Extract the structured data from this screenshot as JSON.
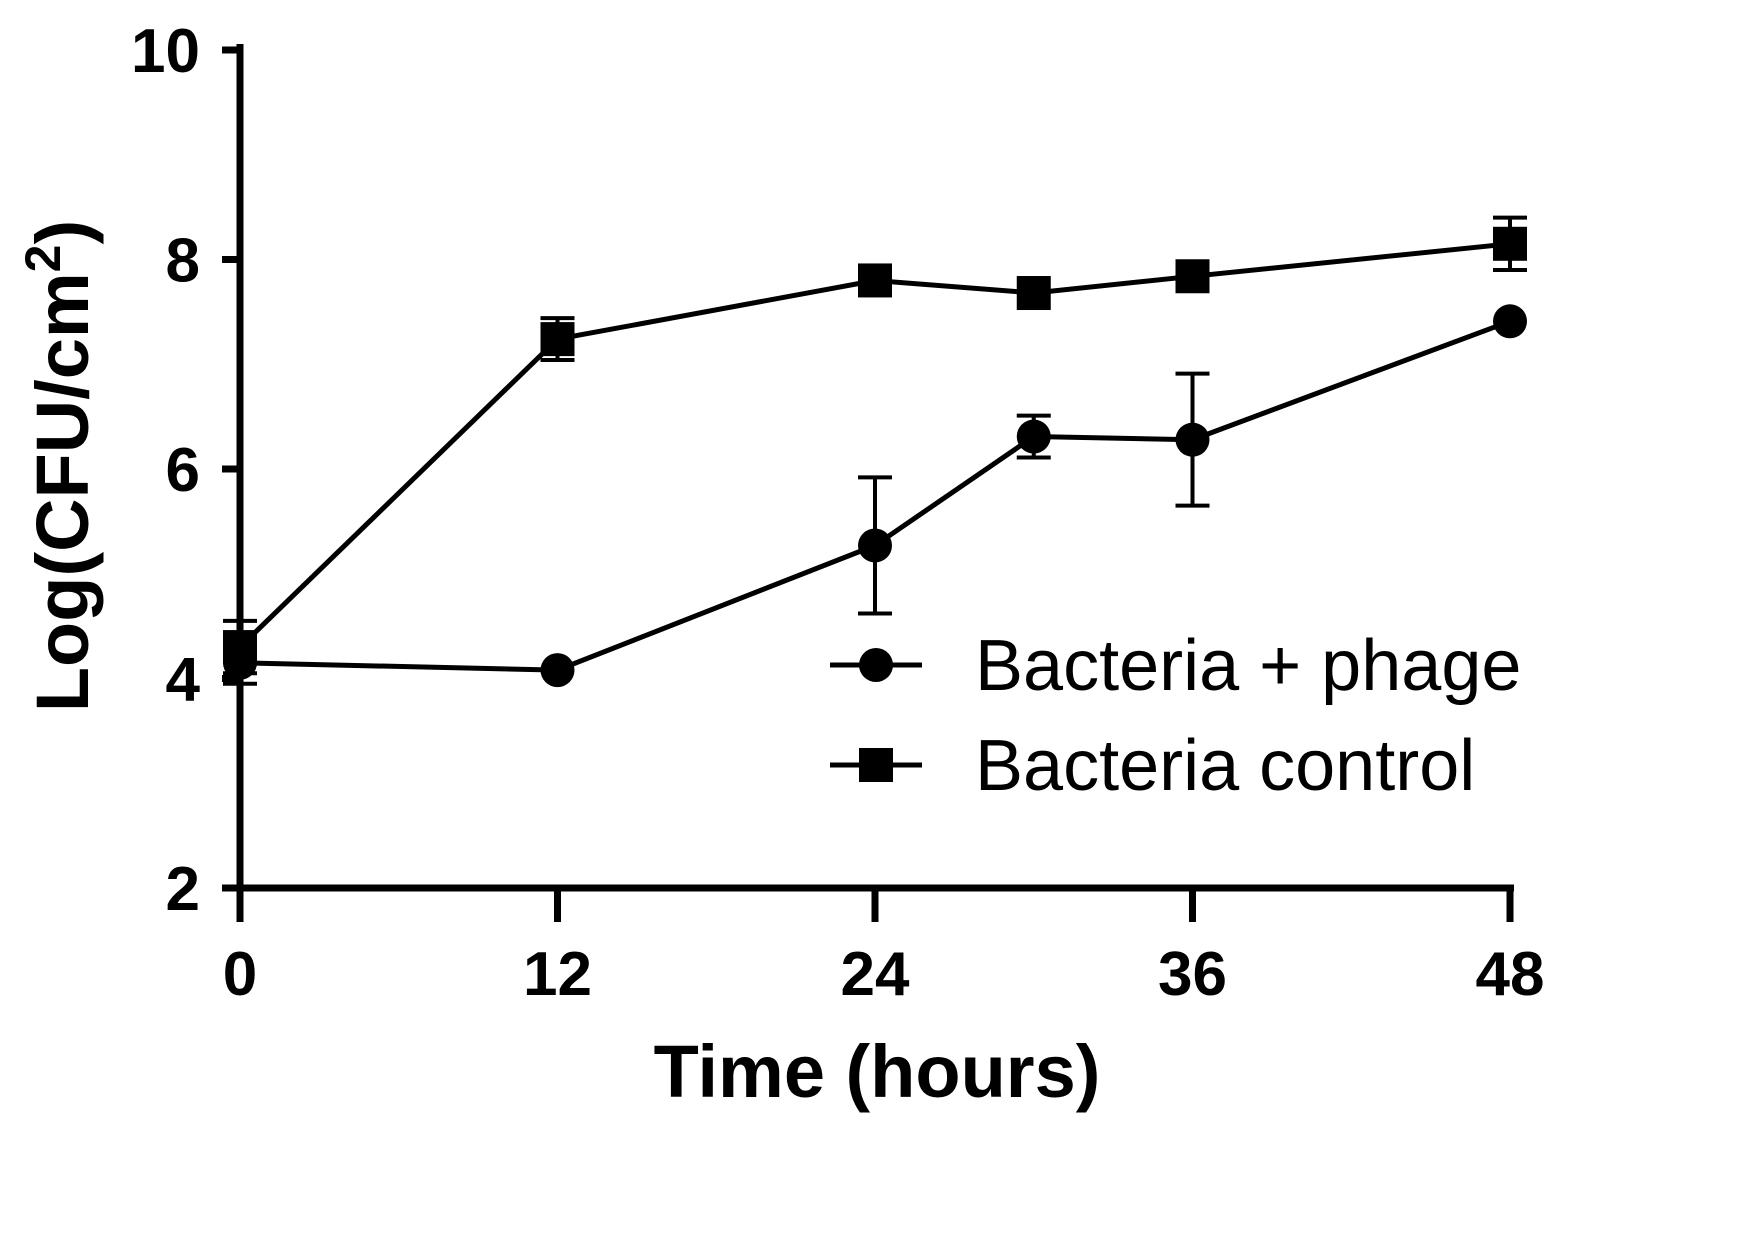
{
  "chart_data": {
    "type": "line",
    "xlabel": "Time (hours)",
    "ylabel_main": "Log(CFU/cm",
    "ylabel_sup": "2",
    "ylabel_close": ")",
    "xlim": [
      0,
      48
    ],
    "ylim": [
      2,
      10
    ],
    "xticks": [
      0,
      12,
      24,
      36,
      48
    ],
    "yticks": [
      2,
      4,
      6,
      8,
      10
    ],
    "xtick_labels": [
      "0",
      "12",
      "24",
      "36",
      "48"
    ],
    "ytick_labels": [
      "2",
      "4",
      "6",
      "8",
      "10"
    ],
    "grid": false,
    "legend_position": "lower-right",
    "series": [
      {
        "name": "Bacteria + phage",
        "marker": "circle",
        "color": "#000000",
        "x": [
          0,
          12,
          24,
          30,
          36,
          48
        ],
        "y": [
          4.15,
          4.08,
          5.27,
          6.31,
          6.28,
          7.41
        ],
        "err": [
          0.2,
          0.0,
          0.65,
          0.2,
          0.63,
          0.0
        ]
      },
      {
        "name": "Bacteria control",
        "marker": "square",
        "color": "#000000",
        "x": [
          0,
          12,
          24,
          30,
          36,
          48
        ],
        "y": [
          4.3,
          7.24,
          7.8,
          7.68,
          7.84,
          8.15
        ],
        "err": [
          0.25,
          0.2,
          0.0,
          0.0,
          0.0,
          0.25
        ]
      }
    ]
  }
}
